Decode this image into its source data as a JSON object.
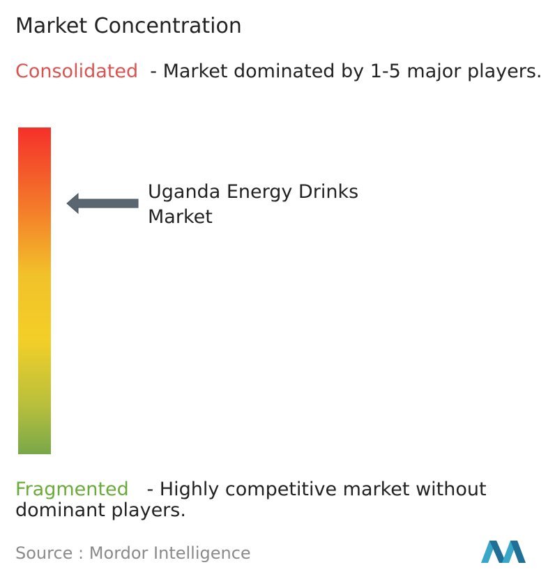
{
  "title": "Market Concentration",
  "consolidated": {
    "label": "Consolidated",
    "description": "- Market dominated by 1-5 major players."
  },
  "marker": {
    "label": "Uganda Energy Drinks Market"
  },
  "fragmented": {
    "label": "Fragmented",
    "description": "- Highly competitive market without dominant players."
  },
  "source": {
    "label": "Source :",
    "name": "Mordor Intelligence"
  }
}
